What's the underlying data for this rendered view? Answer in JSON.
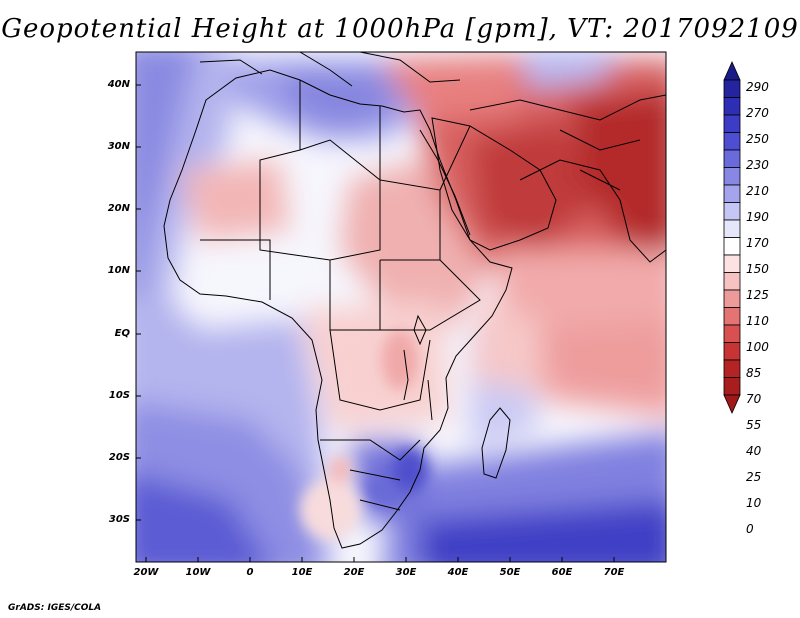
{
  "title": "Geopotential Height at 1000hPa [gpm], VT: 2017092109",
  "footer": "GrADS: IGES/COLA",
  "map": {
    "variable": "Geopotential Height",
    "level": "1000hPa",
    "units": "gpm",
    "valid_time": "2017092109",
    "lon_range": [
      -20,
      80
    ],
    "lat_range": [
      -37,
      45
    ],
    "lat_labels": [
      "40N",
      "30N",
      "20N",
      "10N",
      "EQ",
      "10S",
      "20S",
      "30S"
    ],
    "lon_labels": [
      "20W",
      "10W",
      "0",
      "10E",
      "20E",
      "30E",
      "40E",
      "50E",
      "60E",
      "70E"
    ]
  },
  "colorbar": {
    "levels": [
      "290",
      "270",
      "250",
      "230",
      "210",
      "190",
      "170",
      "150",
      "125",
      "110",
      "100",
      "85",
      "70",
      "55",
      "40",
      "25",
      "10",
      "0"
    ],
    "colors": {
      "above_290": "#1a1a8a",
      "b270_290": "#2424a0",
      "b250_270": "#2e2eb4",
      "b230_250": "#3c3cc6",
      "b210_230": "#4e4ed2",
      "b190_210": "#6a6adc",
      "b170_190": "#8888e4",
      "b150_170": "#a4a4ec",
      "b125_150": "#c6c6f4",
      "b110_125": "#e6e6fb",
      "b100_110": "#ffffff",
      "b85_100": "#fce2e2",
      "b70_85": "#f6c2c2",
      "b55_70": "#ee9a9a",
      "b40_55": "#e47474",
      "b25_40": "#d85050",
      "b10_25": "#c83434",
      "b0_10": "#b42424",
      "below_0": "#a01818"
    }
  }
}
